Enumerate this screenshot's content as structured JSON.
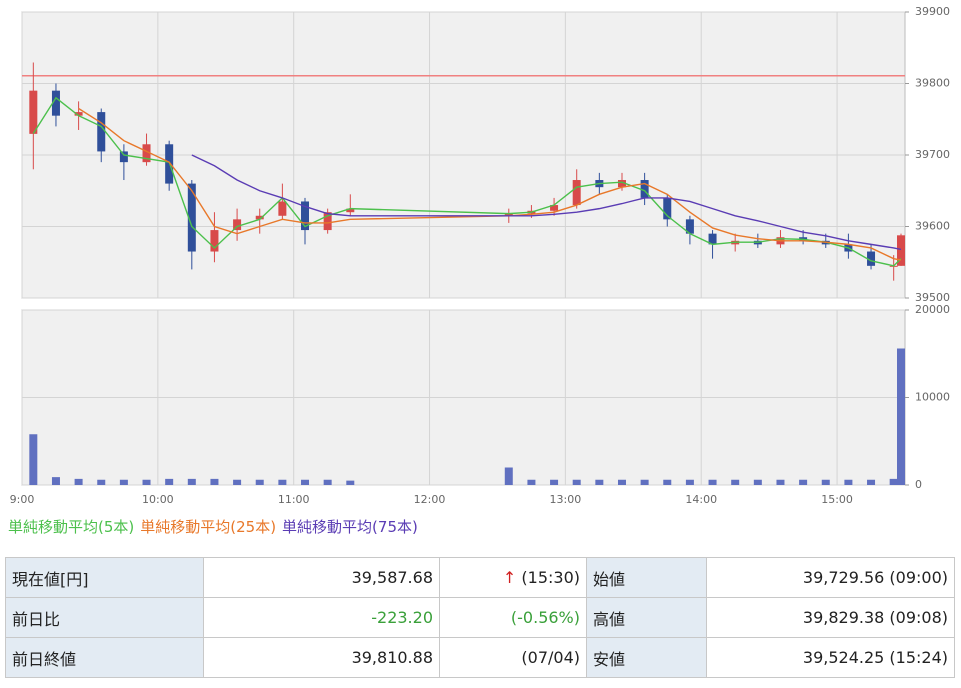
{
  "chart_data": [
    {
      "type": "candlestick",
      "x": [
        "9:00",
        "9:10",
        "9:20",
        "9:30",
        "9:40",
        "9:50",
        "10:00",
        "10:10",
        "10:20",
        "10:30",
        "10:40",
        "10:50",
        "11:00",
        "11:10",
        "11:20",
        "12:30",
        "12:40",
        "12:50",
        "13:00",
        "13:10",
        "13:20",
        "13:30",
        "13:40",
        "13:50",
        "14:00",
        "14:10",
        "14:20",
        "14:30",
        "14:40",
        "14:50",
        "15:00",
        "15:10",
        "15:20",
        "15:30"
      ],
      "open": [
        39729.56,
        39790,
        39755,
        39760,
        39705,
        39690,
        39715,
        39660,
        39565,
        39595,
        39610,
        39615,
        39635,
        39595,
        39620,
        39615,
        39618,
        39622,
        39630,
        39665,
        39655,
        39665,
        39640,
        39610,
        39590,
        39575,
        39580,
        39575,
        39585,
        39580,
        39575,
        39565,
        39545,
        39545
      ],
      "high": [
        39829.38,
        39800,
        39775,
        39765,
        39715,
        39730,
        39720,
        39665,
        39620,
        39625,
        39625,
        39660,
        39640,
        39625,
        39645,
        39625,
        39630,
        39640,
        39680,
        39675,
        39675,
        39675,
        39645,
        39615,
        39595,
        39590,
        39590,
        39595,
        39595,
        39590,
        39590,
        39575,
        39560,
        39590
      ],
      "low": [
        39680,
        39740,
        39735,
        39690,
        39665,
        39685,
        39650,
        39540,
        39550,
        39580,
        39590,
        39610,
        39575,
        39590,
        39615,
        39605,
        39612,
        39615,
        39625,
        39645,
        39650,
        39630,
        39600,
        39575,
        39555,
        39565,
        39570,
        39570,
        39575,
        39570,
        39555,
        39540,
        39524.25,
        39545
      ],
      "close": [
        39790,
        39755,
        39760,
        39705,
        39690,
        39715,
        39660,
        39565,
        39595,
        39610,
        39615,
        39635,
        39595,
        39620,
        39625,
        39618,
        39622,
        39630,
        39665,
        39655,
        39665,
        39640,
        39610,
        39590,
        39575,
        39580,
        39575,
        39585,
        39580,
        39575,
        39565,
        39545,
        39545,
        39587.68
      ],
      "up_color": "#d84a4a",
      "down_color": "#2f4f9a",
      "series": [
        {
          "name": "単純移動平均(5本)",
          "color": "#4cc04c",
          "values": [
            39730,
            39780,
            39755,
            39740,
            39700,
            39695,
            39690,
            39600,
            39570,
            39600,
            39610,
            39640,
            39600,
            39615,
            39625,
            39618,
            39620,
            39630,
            39655,
            39660,
            39662,
            39650,
            39615,
            39590,
            39575,
            39578,
            39578,
            39583,
            39582,
            39578,
            39570,
            39552,
            39545,
            39555
          ]
        },
        {
          "name": "単純移動平均(25本)",
          "color": "#e8782a",
          "values": [
            null,
            null,
            39765,
            39745,
            39720,
            39705,
            39690,
            39650,
            39600,
            39590,
            39600,
            39610,
            39605,
            39605,
            39610,
            39615,
            39617,
            39620,
            39630,
            39645,
            39655,
            39660,
            39645,
            39620,
            39598,
            39588,
            39583,
            39580,
            39580,
            39578,
            39575,
            39570,
            39555,
            39553
          ]
        },
        {
          "name": "単純移動平均(75本)",
          "color": "#5a3cb4",
          "values": [
            null,
            null,
            null,
            null,
            null,
            null,
            null,
            39700,
            39685,
            39665,
            39650,
            39640,
            39628,
            39618,
            39615,
            39615,
            39615,
            39617,
            39620,
            39625,
            39632,
            39640,
            39640,
            39635,
            39625,
            39615,
            39608,
            39600,
            39592,
            39587,
            39580,
            39575,
            39570,
            39568
          ]
        }
      ],
      "reference_line": {
        "value": 39810.88,
        "color": "#f08080"
      },
      "xlim": [
        "9:00",
        "15:30"
      ],
      "xticks": [
        "9:00",
        "10:00",
        "11:00",
        "12:00",
        "13:00",
        "14:00",
        "15:00"
      ],
      "ylim": [
        39500,
        39900
      ],
      "yticks": [
        39500,
        39600,
        39700,
        39800,
        39900
      ],
      "grid": true
    },
    {
      "type": "bar",
      "x": [
        "9:00",
        "9:10",
        "9:20",
        "9:30",
        "9:40",
        "9:50",
        "10:00",
        "10:10",
        "10:20",
        "10:30",
        "10:40",
        "10:50",
        "11:00",
        "11:10",
        "11:20",
        "12:30",
        "12:40",
        "12:50",
        "13:00",
        "13:10",
        "13:20",
        "13:30",
        "13:40",
        "13:50",
        "14:00",
        "14:10",
        "14:20",
        "14:30",
        "14:40",
        "14:50",
        "15:00",
        "15:10",
        "15:20",
        "15:30"
      ],
      "values": [
        5800,
        900,
        700,
        600,
        600,
        600,
        700,
        700,
        700,
        600,
        600,
        600,
        600,
        600,
        500,
        2000,
        600,
        600,
        600,
        600,
        600,
        600,
        600,
        600,
        600,
        600,
        600,
        600,
        600,
        600,
        600,
        600,
        700,
        15600
      ],
      "color": "#6070c0",
      "xlim": [
        "9:00",
        "15:30"
      ],
      "xticks": [
        "9:00",
        "10:00",
        "11:00",
        "12:00",
        "13:00",
        "14:00",
        "15:00"
      ],
      "ylim": [
        0,
        20000
      ],
      "yticks": [
        0,
        10000,
        20000
      ],
      "grid": true
    }
  ],
  "table": {
    "rows": [
      [
        "現在値[円]",
        "39,587.68",
        "↑",
        "(15:30)",
        "始値",
        "39,729.56 (09:00)"
      ],
      [
        "前日比",
        "-223.20",
        "(-0.56%)",
        "高値",
        "39,829.38 (09:08)"
      ],
      [
        "前日終値",
        "39,810.88",
        "(07/04)",
        "安値",
        "39,524.25 (15:24)"
      ]
    ]
  }
}
